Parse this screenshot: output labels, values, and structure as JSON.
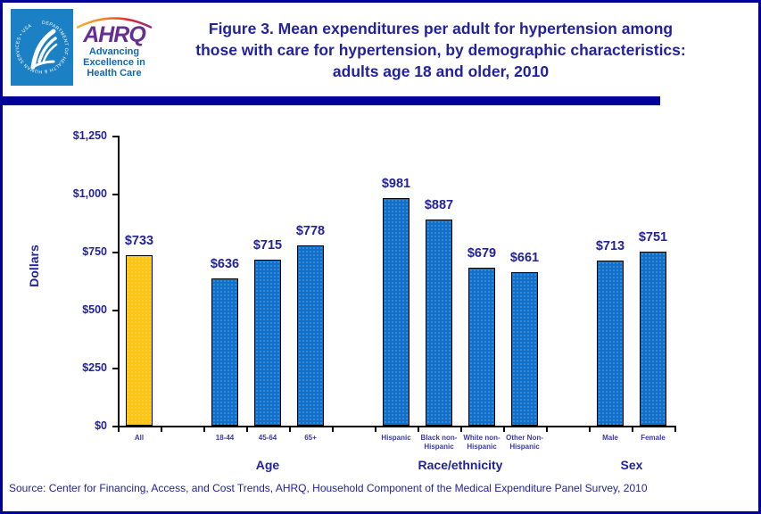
{
  "header": {
    "logo": {
      "seal_text": "DEPARTMENT OF HEALTH & HUMAN SERVICES • USA",
      "brand": "AHRQ",
      "tagline": "Advancing\nExcellence in\nHealth Care"
    },
    "title": "Figure 3. Mean expenditures per adult for hypertension among those with care for hypertension, by demographic characteristics: adults age 18 and older, 2010"
  },
  "chart_data": {
    "type": "bar",
    "title": "Figure 3. Mean expenditures per adult for hypertension among those with care for hypertension, by demographic characteristics: adults age 18 and older, 2010",
    "xlabel": "",
    "ylabel": "Dollars",
    "ylim": [
      0,
      1250
    ],
    "yticks": [
      0,
      250,
      500,
      750,
      1000,
      1250
    ],
    "ytick_labels": [
      "$0",
      "$250",
      "$500",
      "$750",
      "$1,000",
      "$1,250"
    ],
    "grid": false,
    "legend": "none",
    "bar_colors": {
      "default": "#1070C9",
      "highlight": "#FBC511"
    },
    "groups": [
      {
        "label": "",
        "bars": [
          {
            "category": "All",
            "value": 733,
            "value_label": "$733",
            "highlight": true
          }
        ]
      },
      {
        "label": "Age",
        "bars": [
          {
            "category": "18-44",
            "value": 636,
            "value_label": "$636"
          },
          {
            "category": "45-64",
            "value": 715,
            "value_label": "$715"
          },
          {
            "category": "65+",
            "value": 778,
            "value_label": "$778"
          }
        ]
      },
      {
        "label": "Race/ethnicity",
        "bars": [
          {
            "category": "Hispanic",
            "value": 981,
            "value_label": "$981"
          },
          {
            "category": "Black non-\nHispanic",
            "value": 887,
            "value_label": "$887"
          },
          {
            "category": "White non-\nHispanic",
            "value": 679,
            "value_label": "$679"
          },
          {
            "category": "Other Non-\nHispanic",
            "value": 661,
            "value_label": "$661"
          }
        ]
      },
      {
        "label": "Sex",
        "bars": [
          {
            "category": "Male",
            "value": 713,
            "value_label": "$713"
          },
          {
            "category": "Female",
            "value": 751,
            "value_label": "$751"
          }
        ]
      }
    ]
  },
  "source": "Source: Center for Financing, Access, and Cost Trends, AHRQ, Household Component of the Medical Expenditure Panel Survey, 2010"
}
